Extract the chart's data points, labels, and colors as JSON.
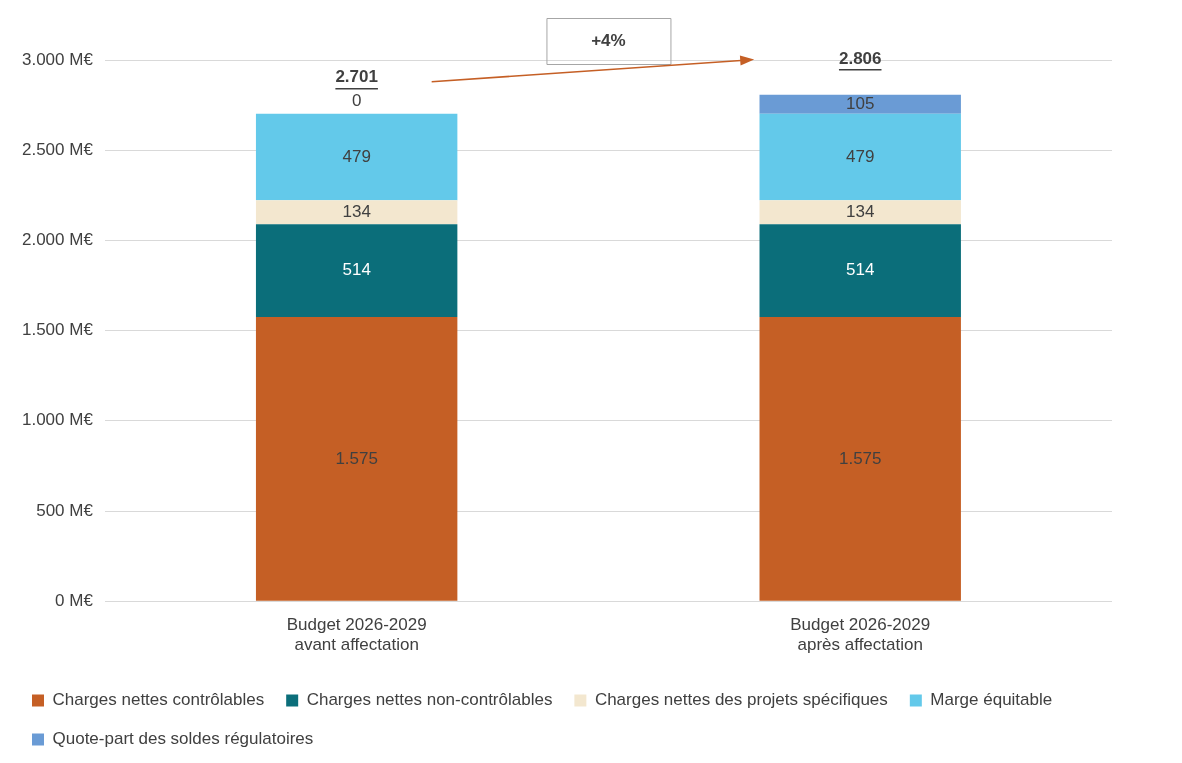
{
  "chart_data": {
    "type": "bar",
    "stacked": true,
    "categories": [
      "Budget 2026-2029\navant affectation",
      "Budget 2026-2029\naprès affectation"
    ],
    "series": [
      {
        "name": "Charges nettes contrôlables",
        "color": "#c55f25",
        "values": [
          1575,
          1575
        ],
        "value_labels": [
          "1.575",
          "1.575"
        ]
      },
      {
        "name": "Charges nettes non-contrôlables",
        "color": "#0b6e7a",
        "values": [
          514,
          514
        ],
        "value_labels": [
          "514",
          "514"
        ]
      },
      {
        "name": "Charges nettes des projets spécifiques",
        "color": "#f3e7cf",
        "values": [
          134,
          134
        ],
        "value_labels": [
          "134",
          "134"
        ]
      },
      {
        "name": "Marge équitable",
        "color": "#63c9ea",
        "values": [
          479,
          479
        ],
        "value_labels": [
          "479",
          "479"
        ]
      },
      {
        "name": "Quote-part des soldes régulatoires",
        "color": "#6a9bd5",
        "values": [
          0,
          105
        ],
        "value_labels": [
          "0",
          "105"
        ]
      }
    ],
    "ylim": [
      0,
      3000
    ],
    "yticks": [
      {
        "value": 0,
        "label": "0 M€"
      },
      {
        "value": 500,
        "label": "500 M€"
      },
      {
        "value": 1000,
        "label": "1.000 M€"
      },
      {
        "value": 1500,
        "label": "1.500 M€"
      },
      {
        "value": 2000,
        "label": "2.000 M€"
      },
      {
        "value": 2500,
        "label": "2.500 M€"
      },
      {
        "value": 3000,
        "label": "3.000 M€"
      }
    ],
    "grid": "y",
    "legend": "bottom",
    "totals": [
      "2.701",
      "2.806"
    ],
    "annotations": [
      "+4%"
    ]
  }
}
